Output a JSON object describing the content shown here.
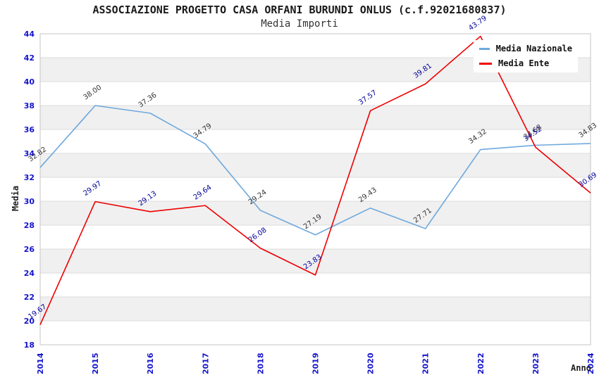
{
  "title": "ASSOCIAZIONE PROGETTO CASA ORFANI BURUNDI ONLUS (c.f.92021680837)",
  "subtitle": "Media Importi",
  "chart_data": {
    "type": "line",
    "title": "ASSOCIAZIONE PROGETTO CASA ORFANI BURUNDI ONLUS (c.f.92021680837)",
    "subtitle": "Media Importi",
    "xlabel": "Anno",
    "ylabel": "Media",
    "categories": [
      "2014",
      "2015",
      "2016",
      "2017",
      "2018",
      "2019",
      "2020",
      "2021",
      "2022",
      "2023",
      "2024"
    ],
    "series": [
      {
        "name": "Media Nazionale",
        "color": "#6FA8DC",
        "label_color": "#333333",
        "values": [
          32.82,
          38.0,
          37.36,
          34.79,
          29.24,
          27.19,
          29.43,
          27.71,
          34.32,
          34.68,
          34.83
        ]
      },
      {
        "name": "Media Ente",
        "color": "#EE0000",
        "label_color": "#000099",
        "values": [
          19.67,
          29.97,
          29.13,
          29.64,
          26.08,
          23.83,
          37.57,
          39.81,
          43.79,
          34.52,
          30.69
        ]
      }
    ],
    "ylim": [
      18,
      44
    ],
    "ytick_step": 2,
    "grid": true,
    "legend_position": "top-right",
    "colors": {
      "tick_label": "#1414CE",
      "gridline": "#DBDBDB",
      "band": "#F0F0F0",
      "plot_border": "#C6C6C6",
      "background": "#FFFFFF"
    }
  }
}
